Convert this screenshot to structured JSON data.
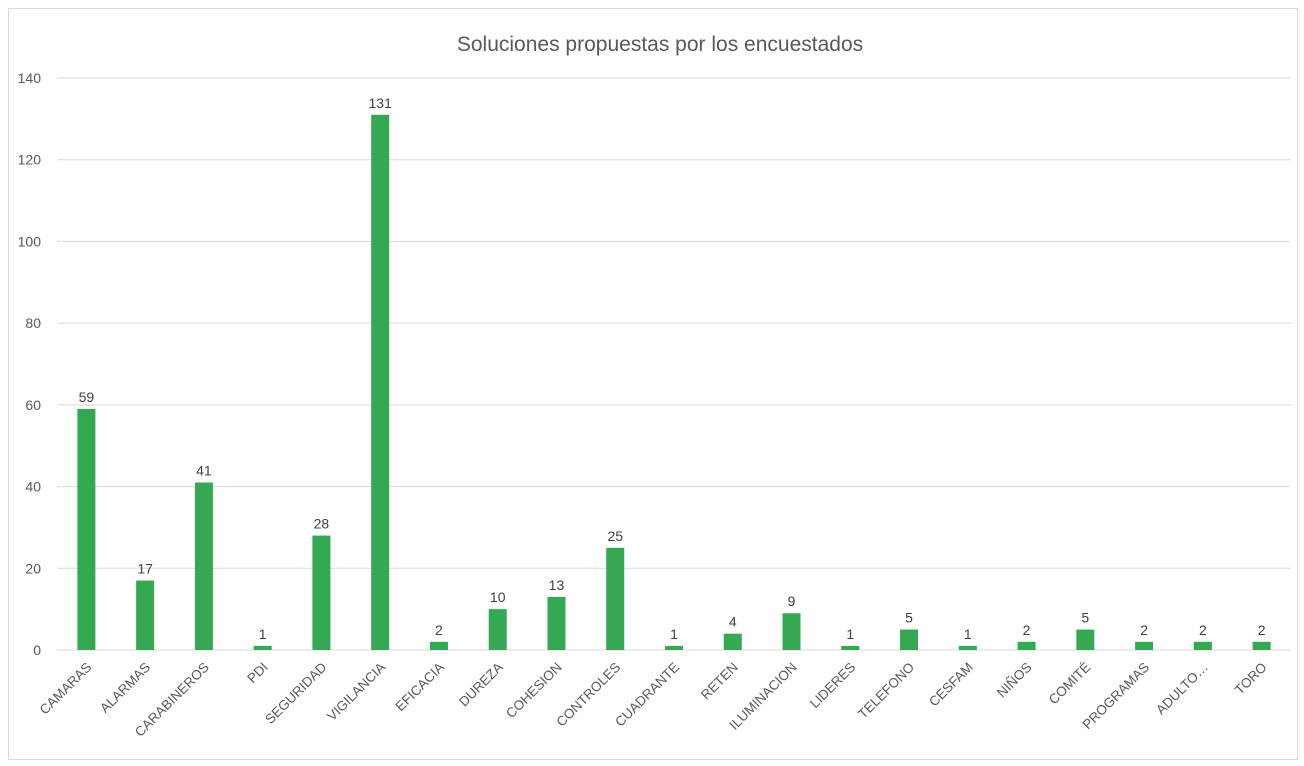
{
  "chart_data": {
    "type": "bar",
    "title": "Soluciones propuestas por los encuestados",
    "xlabel": "",
    "ylabel": "",
    "categories": [
      "CAMARAS",
      "ALARMAS",
      "CARABINEROS",
      "PDI",
      "SEGURIDAD",
      "VIGILANCIA",
      "EFICACIA",
      "DUREZA",
      "COHESION",
      "CONTROLES",
      "CUADRANTE",
      "RETEN",
      "ILUMINACION",
      "LIDERES",
      "TELEFONO",
      "CESFAM",
      "NIÑOS",
      "COMITÉ",
      "PROGRAMAS",
      "ADULTO…",
      "TORO"
    ],
    "series": [
      {
        "values": [
          59,
          17,
          41,
          1,
          28,
          131,
          2,
          10,
          13,
          25,
          1,
          4,
          9,
          1,
          5,
          1,
          2,
          5,
          2,
          2,
          2
        ]
      }
    ],
    "ylim": [
      0,
      140
    ],
    "yticks": [
      0,
      20,
      40,
      60,
      80,
      100,
      120,
      140
    ],
    "data_labels": true,
    "grid": true,
    "legend": "none",
    "colors": {
      "bar": "#34a853",
      "grid": "#d9d9d9",
      "text": "#595959"
    }
  }
}
